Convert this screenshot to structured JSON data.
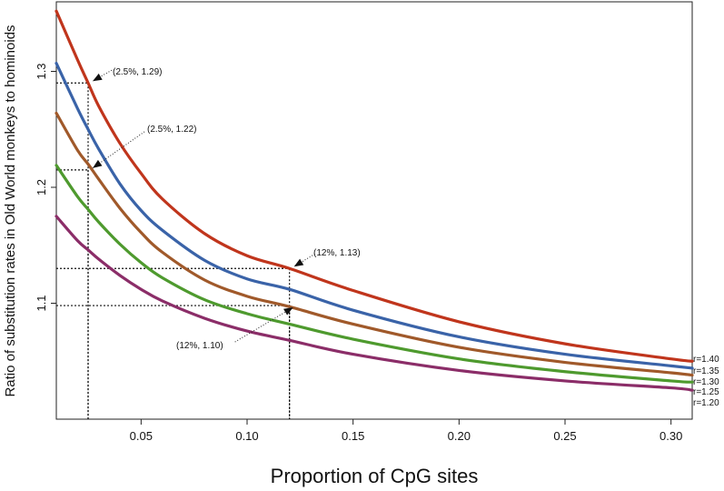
{
  "chart_data": {
    "type": "line",
    "title": "",
    "xlabel": "Proportion of CpG sites",
    "ylabel": "Ratio of substitution rates in Old World monkeys to hominoids",
    "xlim": [
      0.01,
      0.31
    ],
    "ylim": [
      1.0,
      1.36
    ],
    "grid": false,
    "x_ticks": [
      "0.05",
      "0.10",
      "0.15",
      "0.20",
      "0.25",
      "0.30"
    ],
    "y_ticks": [
      "1.1",
      "1.2",
      "1.3"
    ],
    "x": [
      0.01,
      0.02,
      0.025,
      0.03,
      0.04,
      0.05,
      0.06,
      0.08,
      0.1,
      0.12,
      0.15,
      0.2,
      0.25,
      0.3,
      0.31
    ],
    "series": [
      {
        "name": "r=1.40",
        "color": "#c0351c",
        "values": [
          1.352,
          1.31,
          1.29,
          1.27,
          1.238,
          1.212,
          1.19,
          1.16,
          1.141,
          1.13,
          1.111,
          1.084,
          1.065,
          1.052,
          1.05
        ]
      },
      {
        "name": "r=1.35",
        "color": "#3a63a8",
        "values": [
          1.307,
          1.268,
          1.25,
          1.233,
          1.203,
          1.18,
          1.163,
          1.137,
          1.121,
          1.112,
          1.094,
          1.071,
          1.056,
          1.046,
          1.044
        ]
      },
      {
        "name": "r=1.30",
        "color": "#a0592a",
        "values": [
          1.264,
          1.232,
          1.22,
          1.207,
          1.182,
          1.161,
          1.144,
          1.12,
          1.106,
          1.097,
          1.082,
          1.062,
          1.049,
          1.04,
          1.038
        ]
      },
      {
        "name": "r=1.25",
        "color": "#4e9a2e",
        "values": [
          1.219,
          1.192,
          1.181,
          1.17,
          1.151,
          1.135,
          1.122,
          1.103,
          1.091,
          1.082,
          1.069,
          1.052,
          1.041,
          1.033,
          1.032
        ]
      },
      {
        "name": "r=1.20",
        "color": "#8b2d68",
        "values": [
          1.175,
          1.154,
          1.146,
          1.138,
          1.124,
          1.112,
          1.102,
          1.087,
          1.076,
          1.068,
          1.056,
          1.042,
          1.033,
          1.027,
          1.025
        ]
      }
    ],
    "annotations": [
      {
        "text": "(2.5%, 1.29)",
        "x": 0.025,
        "y": 1.29
      },
      {
        "text": "(2.5%, 1.22)",
        "x": 0.025,
        "y": 1.215
      },
      {
        "text": "(12%, 1.13)",
        "x": 0.12,
        "y": 1.13
      },
      {
        "text": "(12%, 1.10)",
        "x": 0.12,
        "y": 1.098
      }
    ]
  }
}
